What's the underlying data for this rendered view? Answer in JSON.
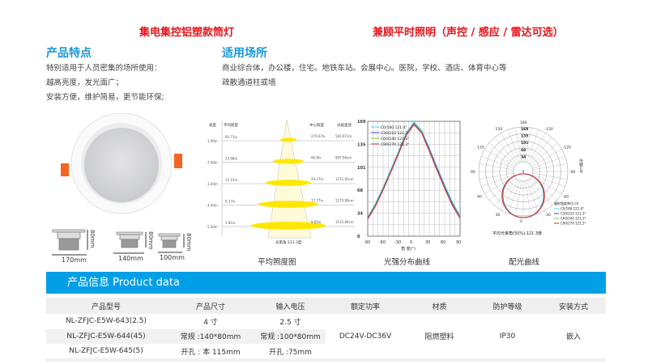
{
  "titles": {
    "left": "集电集控铝塑款筒灯",
    "right": "兼顾平时照明（声控 / 感应 / 雷达可选）"
  },
  "features": {
    "heading": "产品特点",
    "lines": [
      "特别适用于人员密集的场所使用：",
      "越高亮度，发光面广；",
      "安装方便，维护简易，更节能环保;"
    ]
  },
  "applications": {
    "heading": "适用场所",
    "lines": [
      "商业综合体，办公楼，住宅。地铁车站。会展中心。医院，学校、酒店、体育中心等",
      "疏散通道柱或墙"
    ]
  },
  "dimensions": [
    {
      "width": "170mm",
      "height": "80mm"
    },
    {
      "width": "140mm",
      "height": "80mm"
    },
    {
      "width": "100mm",
      "height": "80mm"
    }
  ],
  "captions": {
    "illuminance": "平均照度图",
    "intensity": "光强分布曲线",
    "polar": "配光曲线"
  },
  "colors": {
    "accent": "#009fe6",
    "title_red": "#e8141b",
    "heading_blue": "#1696d9",
    "lamp_clip": "#f26522"
  },
  "chart_data": [
    {
      "type": "table",
      "name": "illuminance",
      "headers": [
        "高度",
        "平均照度",
        "中心照度",
        "光斑直径"
      ],
      "rows": [
        [
          "1.00m",
          "95.71lx",
          "270.67lx",
          "581.97cm"
        ],
        [
          "2.00m",
          "23.68lx",
          "66.8lx",
          "897.96cm"
        ],
        [
          "3.00m",
          "11.15lx",
          "29.27lx",
          "1151.92cm"
        ],
        [
          "4.00m",
          "6.17lx",
          "17.27lx",
          "1275.89cm"
        ],
        [
          "5.00m",
          "3.81lx",
          "9.85lx",
          "1515.86cm"
        ]
      ],
      "footer": "光束角:121.3度"
    },
    {
      "type": "line",
      "name": "intensity",
      "xlabel": "角 度(°)",
      "xlim": [
        -90,
        90
      ],
      "ylim": [
        0,
        169
      ],
      "xticks": [
        -90,
        -60,
        -30,
        0,
        30,
        60,
        90
      ],
      "yticks": [
        0,
        34,
        68,
        101,
        135,
        169
      ],
      "grid": true,
      "legend": "top-left",
      "x": [
        -90,
        -75,
        -60,
        -45,
        -30,
        -15,
        0,
        15,
        30,
        45,
        60,
        75,
        90
      ],
      "series": [
        {
          "name": "C0/180 121.4°",
          "color": "#4fd6e8",
          "values": [
            28,
            48,
            72,
            98,
            125,
            152,
            168,
            156,
            130,
            102,
            75,
            50,
            30
          ]
        },
        {
          "name": "C30/210 121.3°",
          "color": "#4a3fb8",
          "values": [
            27,
            46,
            70,
            96,
            123,
            150,
            166,
            154,
            128,
            100,
            73,
            48,
            28
          ]
        },
        {
          "name": "C60/240 121.3°",
          "color": "#7ac943",
          "values": [
            26,
            45,
            69,
            95,
            122,
            149,
            165,
            153,
            126,
            98,
            71,
            46,
            27
          ]
        },
        {
          "name": "C90/270 121.3°",
          "color": "#d8263a",
          "values": [
            25,
            44,
            68,
            94,
            121,
            148,
            164,
            152,
            125,
            97,
            70,
            45,
            26
          ]
        }
      ]
    },
    {
      "type": "polar",
      "name": "polar",
      "rings": [
        34,
        68,
        101,
        135,
        169
      ],
      "angle_labels": [
        180,
        150,
        120,
        90,
        60,
        30,
        0,
        -30,
        -60,
        -90,
        -120,
        -150
      ],
      "legend_title": "辐射强度单位:cd",
      "side_label": "光强(cd)",
      "legend": [
        "C0/180 121.4°",
        "C30/210 121.3°",
        "C60/240 121.3°",
        "C90/270 121.3°"
      ],
      "footer": "平均光束角(50%):121.3度"
    }
  ],
  "product_bar": "产品信息 Product data",
  "table": {
    "headers": [
      "产品型号",
      "产品尺寸",
      "输入电压",
      "额定功率",
      "材质",
      "防护等级",
      "安装方式"
    ],
    "models": [
      "NL-ZFJC-E5W-643(2.5)",
      "NL-ZFJC-E5W-644(45)",
      "NL-ZFJC-E5W-645(5)"
    ],
    "size": [
      "4 寸",
      "常规 :140*80mm",
      "开孔 : 本 115mm"
    ],
    "voltage": [
      "2.5 寸",
      "常规 :100*80mm",
      "开孔 :75mm"
    ],
    "power": "DC24V-DC36V",
    "material": "阻燃塑料",
    "ip": "IP30",
    "install": "嵌入"
  }
}
